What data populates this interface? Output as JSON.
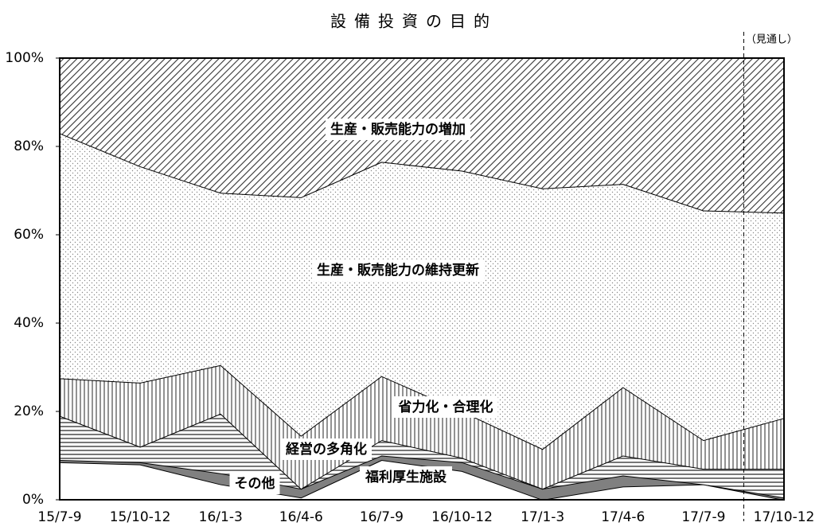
{
  "chart_data": {
    "type": "stacked_area",
    "title": "設備投資の目的",
    "categories": [
      "15/7-9",
      "15/10-12",
      "16/1-3",
      "16/4-6",
      "16/7-9",
      "16/10-12",
      "17/1-3",
      "17/4-6",
      "17/7-9",
      "17/10-12"
    ],
    "series": [
      {
        "name": "その他",
        "color": "#ffffff",
        "values": [
          8.5,
          8,
          3.5,
          0.5,
          9,
          6.5,
          0,
          3,
          3.5,
          0
        ]
      },
      {
        "name": "福利厚生施設",
        "color": "#808080",
        "values": [
          0.5,
          0.5,
          2.5,
          2,
          1,
          2,
          2.5,
          2.5,
          0,
          0.5
        ]
      },
      {
        "name": "経営の多角化",
        "color": "#9a9a9a",
        "values": [
          10,
          3.5,
          13.5,
          0,
          3.5,
          1,
          0,
          4.5,
          3.5,
          6.5
        ]
      },
      {
        "name": "省力化・合理化",
        "color": "#9a9a9a",
        "values": [
          8.5,
          14.5,
          11,
          12,
          14.5,
          10.5,
          9,
          15.5,
          6.5,
          11.5
        ]
      },
      {
        "name": "生産・販売能力の維持更新",
        "color": "#b0b0b0",
        "values": [
          55.5,
          49,
          39,
          54,
          48.5,
          54.5,
          59,
          46,
          52,
          46.5
        ]
      },
      {
        "name": "生産・販売能力の増加",
        "color": "#555555",
        "values": [
          17,
          24.5,
          30.5,
          31.5,
          23.5,
          25.5,
          29.5,
          28.5,
          34.5,
          35
        ]
      }
    ],
    "ylim": [
      0,
      100
    ],
    "yticks": [
      {
        "value": 0,
        "label": "0%"
      },
      {
        "value": 20,
        "label": "20%"
      },
      {
        "value": 40,
        "label": "40%"
      },
      {
        "value": 60,
        "label": "60%"
      },
      {
        "value": 80,
        "label": "80%"
      },
      {
        "value": 100,
        "label": "100%"
      }
    ],
    "annotation": "（見通し）"
  }
}
